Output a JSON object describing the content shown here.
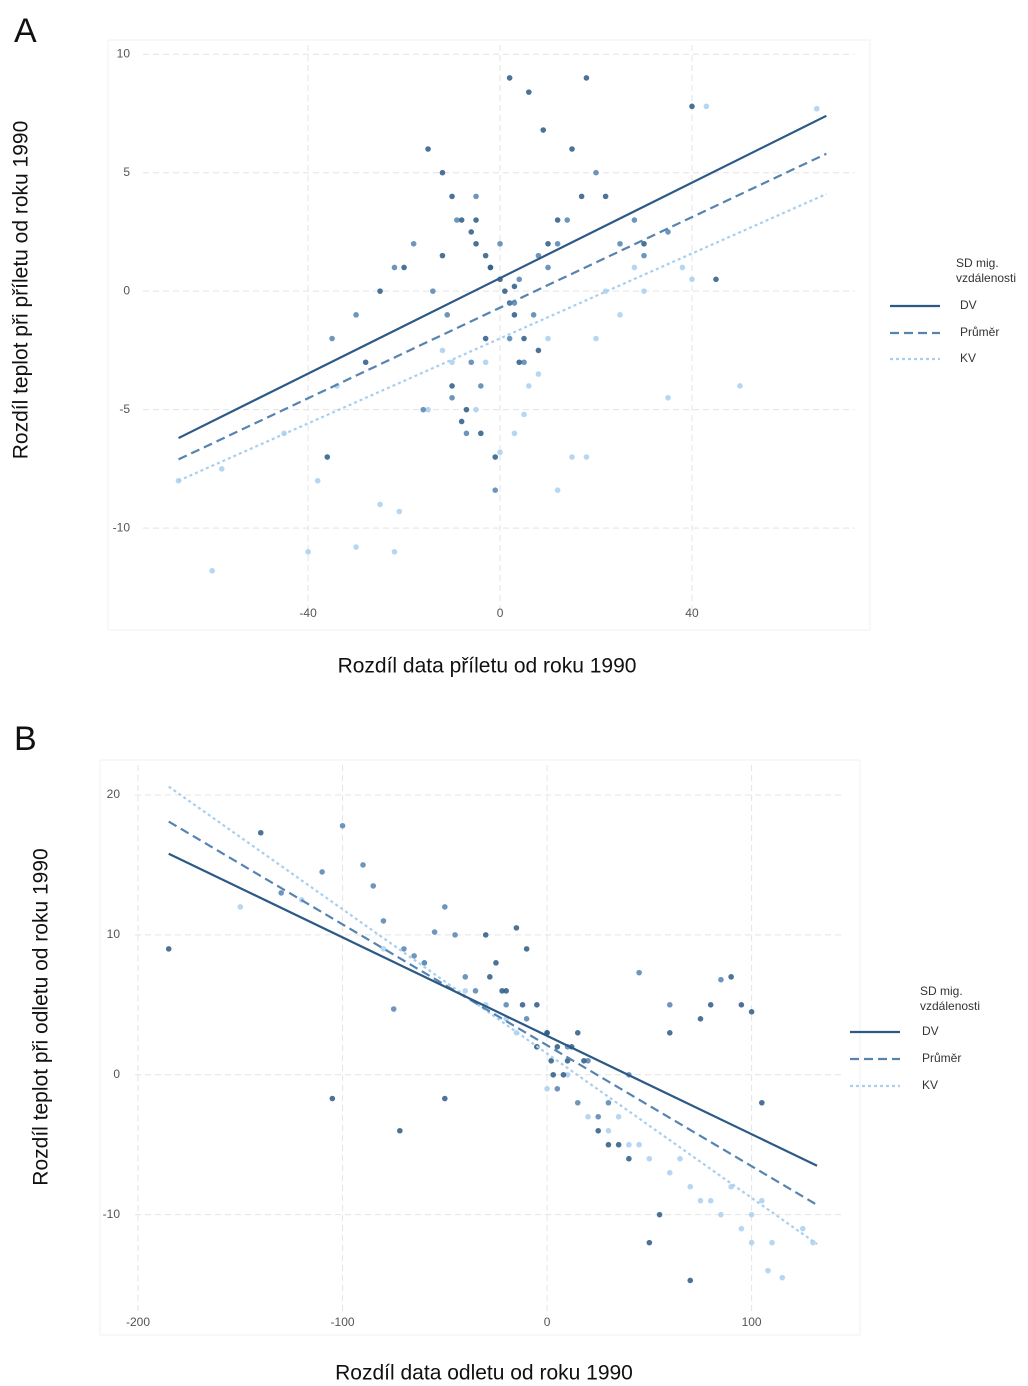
{
  "chart_data": [
    {
      "type": "scatter",
      "panel_label": "A",
      "xlabel": "Rozdíl data příletu od roku 1990",
      "ylabel": "Rozdíl teplot při příletu od roku 1990",
      "legend_title": "SD mig. vzdálenosti",
      "xlim": [
        -81.7,
        77.1
      ],
      "ylim": [
        -14.3,
        10.6
      ],
      "xticks": [
        -40,
        0,
        40
      ],
      "yticks": [
        -10,
        -5,
        0,
        5,
        10
      ],
      "grid": true,
      "series": [
        {
          "name": "DV",
          "color": "#2c5a85",
          "dash": "solid",
          "x": [
            -15,
            -12,
            -10,
            -8,
            -6,
            -5,
            -3,
            -2,
            0,
            1,
            2,
            3,
            5,
            -10,
            -7,
            -4,
            -1,
            4,
            8,
            10,
            -20,
            -25,
            12,
            15,
            -8,
            -5,
            2,
            6,
            -12,
            -3,
            3,
            9,
            18,
            22,
            30,
            40,
            45,
            -36,
            -28,
            17
          ],
          "y": [
            6,
            5,
            4,
            3,
            2.5,
            2,
            1.5,
            1,
            0.5,
            0,
            -0.5,
            -1,
            -2,
            -4,
            -5,
            -6,
            -7,
            -3,
            -2.5,
            2,
            1,
            0,
            3,
            6,
            -5.5,
            3,
            9,
            8.4,
            1.5,
            -2,
            0.2,
            6.8,
            9,
            4,
            2,
            7.8,
            0.5,
            -7,
            -3,
            4
          ],
          "fit_x": [
            -67,
            68
          ],
          "fit_y": [
            -6.2,
            7.4
          ]
        },
        {
          "name": "Průměr",
          "color": "#5584b0",
          "dash": "dashed",
          "x": [
            -22,
            -18,
            -14,
            -11,
            -9,
            -6,
            -4,
            -2,
            0,
            2,
            4,
            7,
            10,
            14,
            20,
            25,
            30,
            -30,
            -35,
            -16,
            -7,
            -1,
            5,
            12,
            28,
            35,
            -10,
            -5,
            3,
            8
          ],
          "y": [
            1,
            2,
            0,
            -1,
            3,
            -3,
            -4,
            1,
            2,
            -2,
            0.5,
            -1,
            1,
            3,
            5,
            2,
            1.5,
            -1,
            -2,
            -5,
            -6,
            -8.4,
            -3,
            2,
            3,
            2.5,
            -4.5,
            4,
            -0.5,
            1.5
          ],
          "fit_x": [
            -67,
            68
          ],
          "fit_y": [
            -7.1,
            5.8
          ]
        },
        {
          "name": "KV",
          "color": "#a9cfee",
          "dash": "dotted",
          "x": [
            -67,
            -60,
            -58,
            -45,
            -40,
            -38,
            -30,
            -25,
            -22,
            -21,
            -15,
            -10,
            -5,
            0,
            3,
            6,
            10,
            15,
            18,
            20,
            25,
            30,
            35,
            38,
            40,
            43,
            50,
            66,
            -3,
            5,
            12,
            22,
            -12,
            8,
            28,
            -34
          ],
          "y": [
            -8,
            -11.8,
            -7.5,
            -6,
            -11,
            -8,
            -10.8,
            -9,
            -11,
            -9.3,
            -5,
            -3,
            -5,
            -6.8,
            -6,
            -4,
            -2,
            -7,
            -7,
            -2,
            -1,
            0,
            -4.5,
            1,
            0.5,
            7.8,
            -4,
            7.7,
            -3,
            -5.2,
            -8.4,
            0,
            -2.5,
            -3.5,
            1,
            -4
          ],
          "fit_x": [
            -67,
            68
          ],
          "fit_y": [
            -8,
            4.1
          ]
        }
      ]
    },
    {
      "type": "scatter",
      "panel_label": "B",
      "xlabel": "Rozdíl data odletu od roku 1990",
      "ylabel": "Rozdíl teplot při odletu od roku 1990",
      "legend_title": "SD mig. vzdálenosti",
      "xlim": [
        -218.6,
        153
      ],
      "ylim": [
        -18.6,
        22.5
      ],
      "xticks": [
        -200,
        -100,
        0,
        100
      ],
      "yticks": [
        -10,
        0,
        10,
        20
      ],
      "grid": true,
      "series": [
        {
          "name": "DV",
          "color": "#2c5a85",
          "dash": "solid",
          "x": [
            -185,
            -140,
            -105,
            -72,
            -50,
            -30,
            -25,
            -20,
            -15,
            -10,
            -5,
            0,
            5,
            10,
            15,
            -28,
            -22,
            -12,
            2,
            8,
            12,
            30,
            40,
            50,
            60,
            70,
            80,
            90,
            95,
            100,
            105,
            55,
            75,
            35,
            25,
            -5,
            3,
            18
          ],
          "y": [
            9,
            17.3,
            -1.7,
            -4,
            -1.7,
            10,
            8,
            6,
            10.5,
            9,
            5,
            3,
            2,
            1,
            3,
            7,
            6,
            5,
            1,
            0,
            2,
            -5,
            -6,
            -12,
            3,
            -14.7,
            5,
            7,
            5,
            4.5,
            -2,
            -10,
            4,
            -5,
            -4,
            2,
            0,
            1
          ],
          "fit_x": [
            -185,
            132
          ],
          "fit_y": [
            15.8,
            -6.5
          ]
        },
        {
          "name": "Průměr",
          "color": "#5584b0",
          "dash": "dashed",
          "x": [
            -130,
            -110,
            -100,
            -90,
            -85,
            -80,
            -70,
            -60,
            -50,
            -45,
            -40,
            -35,
            -20,
            -10,
            0,
            10,
            20,
            30,
            45,
            60,
            85,
            -75,
            -65,
            -55,
            5,
            15,
            25,
            40
          ],
          "y": [
            13,
            14.5,
            17.8,
            15,
            13.5,
            11,
            9,
            8,
            12,
            10,
            7,
            6,
            5,
            4,
            3,
            2,
            1,
            -2,
            7.3,
            5,
            6.8,
            4.7,
            8.5,
            10.2,
            -1,
            -2,
            -3,
            0
          ],
          "fit_x": [
            -185,
            132
          ],
          "fit_y": [
            18.1,
            -9.3
          ]
        },
        {
          "name": "KV",
          "color": "#a9cfee",
          "dash": "dotted",
          "x": [
            -150,
            -120,
            -80,
            -60,
            -40,
            -20,
            -5,
            0,
            10,
            20,
            30,
            40,
            50,
            60,
            70,
            80,
            85,
            90,
            95,
            100,
            105,
            110,
            115,
            125,
            130,
            -30,
            -15,
            35,
            45,
            65,
            75,
            100,
            108
          ],
          "y": [
            12,
            12.5,
            9,
            8,
            6,
            4,
            2,
            -1,
            0,
            -3,
            -4,
            -5,
            -6,
            -7,
            -8,
            -9,
            -10,
            -8,
            -11,
            -10,
            -9,
            -12,
            -14.5,
            -11,
            -12,
            5,
            3,
            -3,
            -5,
            -6,
            -9,
            -12,
            -14
          ],
          "fit_x": [
            -185,
            132
          ],
          "fit_y": [
            20.6,
            -12.1
          ]
        }
      ]
    }
  ]
}
